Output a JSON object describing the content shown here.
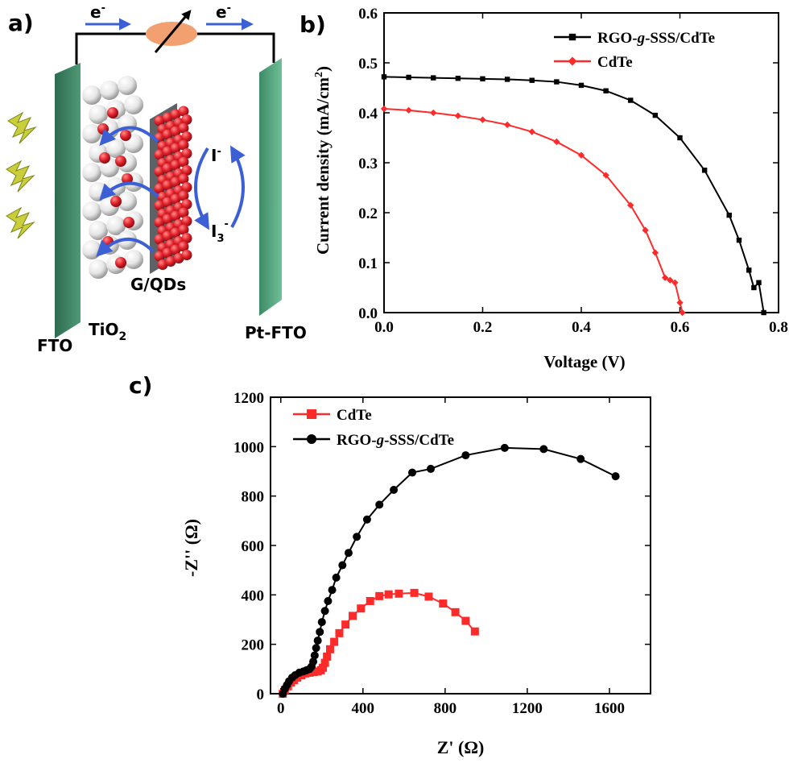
{
  "panels": {
    "a": {
      "label": "a)",
      "electron_left": "e",
      "electron_right": "e",
      "electron_sup": "-",
      "iodide": "I",
      "iodide_sup": "-",
      "triiodide": "I",
      "triiodide_sub": "3",
      "triiodide_sup": "-",
      "label_fto": "FTO",
      "label_tio2": "TiO",
      "label_tio2_sub": "2",
      "label_gqds": "G/QDs",
      "label_ptfto": "Pt-FTO",
      "colors": {
        "electrode": "#2e6b4f",
        "electrode_light": "#5aa383",
        "tio2_sphere": "#e6e6e6",
        "qd_sphere": "#e2222b",
        "arrow": "#3c5fd6",
        "load": "#f2a070",
        "light": "#c9cf3c"
      }
    },
    "b": {
      "label": "b)"
    },
    "c": {
      "label": "c)"
    }
  },
  "chart_data": [
    {
      "panel": "b",
      "type": "line",
      "xlabel": "Voltage (V)",
      "ylabel": "Current density (mA/cm",
      "ylabel_sup": "2",
      "ylabel_close": ")",
      "xlim": [
        0.0,
        0.8
      ],
      "ylim": [
        0.0,
        0.6
      ],
      "xticks": [
        "0.0",
        "0.2",
        "0.4",
        "0.6",
        "0.8"
      ],
      "yticks": [
        "0.0",
        "0.1",
        "0.2",
        "0.3",
        "0.4",
        "0.5",
        "0.6"
      ],
      "legend_position": "top-right",
      "series": [
        {
          "name": "RGO-g-SSS/CdTe",
          "name_parts": [
            "RGO-",
            "g",
            "-SSS/CdTe"
          ],
          "color": "#000000",
          "marker": "square",
          "x": [
            0.0,
            0.05,
            0.1,
            0.15,
            0.2,
            0.25,
            0.3,
            0.35,
            0.4,
            0.45,
            0.5,
            0.55,
            0.6,
            0.65,
            0.7,
            0.72,
            0.74,
            0.75,
            0.76,
            0.77
          ],
          "y": [
            0.472,
            0.471,
            0.47,
            0.469,
            0.468,
            0.467,
            0.465,
            0.462,
            0.455,
            0.444,
            0.425,
            0.395,
            0.35,
            0.285,
            0.195,
            0.145,
            0.085,
            0.05,
            0.06,
            0.0
          ]
        },
        {
          "name": "CdTe",
          "name_parts": [
            "CdTe"
          ],
          "color": "#ff2a2a",
          "marker": "diamond",
          "x": [
            0.0,
            0.05,
            0.1,
            0.15,
            0.2,
            0.25,
            0.3,
            0.35,
            0.4,
            0.45,
            0.5,
            0.53,
            0.55,
            0.57,
            0.58,
            0.59,
            0.6,
            0.605
          ],
          "y": [
            0.408,
            0.405,
            0.4,
            0.394,
            0.386,
            0.376,
            0.362,
            0.342,
            0.315,
            0.275,
            0.215,
            0.165,
            0.12,
            0.07,
            0.065,
            0.06,
            0.02,
            0.0
          ]
        }
      ]
    },
    {
      "panel": "c",
      "type": "scatter",
      "xlabel": "Z' (Ω)",
      "ylabel": "-Z'' (Ω)",
      "xlim": [
        -50,
        1800
      ],
      "ylim": [
        0,
        1200
      ],
      "xticks": [
        "0",
        "400",
        "800",
        "1200",
        "1600"
      ],
      "yticks": [
        "0",
        "200",
        "400",
        "600",
        "800",
        "1000",
        "1200"
      ],
      "legend_position": "top-left",
      "series": [
        {
          "name": "CdTe",
          "name_parts": [
            "CdTe"
          ],
          "color": "#ff2a2a",
          "marker": "square",
          "x": [
            10,
            20,
            35,
            50,
            65,
            80,
            100,
            120,
            140,
            160,
            180,
            195,
            205,
            215,
            225,
            240,
            260,
            285,
            315,
            350,
            390,
            435,
            480,
            525,
            575,
            650,
            720,
            790,
            850,
            900,
            945
          ],
          "y": [
            0,
            15,
            30,
            45,
            55,
            65,
            75,
            82,
            85,
            88,
            90,
            95,
            105,
            125,
            150,
            180,
            210,
            245,
            280,
            315,
            345,
            375,
            395,
            402,
            405,
            408,
            393,
            365,
            330,
            295,
            252
          ]
        },
        {
          "name": "RGO-g-SSS/CdTe",
          "name_parts": [
            "RGO-",
            "g",
            "-SSS/CdTe"
          ],
          "color": "#000000",
          "marker": "circle",
          "x": [
            10,
            20,
            30,
            40,
            55,
            70,
            90,
            110,
            125,
            140,
            150,
            158,
            165,
            172,
            180,
            190,
            200,
            215,
            230,
            250,
            270,
            300,
            330,
            370,
            420,
            480,
            550,
            640,
            730,
            900,
            1090,
            1280,
            1460,
            1630
          ],
          "y": [
            0,
            20,
            35,
            50,
            65,
            75,
            85,
            90,
            95,
            100,
            110,
            130,
            155,
            185,
            215,
            250,
            290,
            335,
            375,
            420,
            470,
            520,
            570,
            635,
            705,
            765,
            825,
            895,
            910,
            965,
            995,
            990,
            950,
            880
          ]
        }
      ]
    }
  ]
}
